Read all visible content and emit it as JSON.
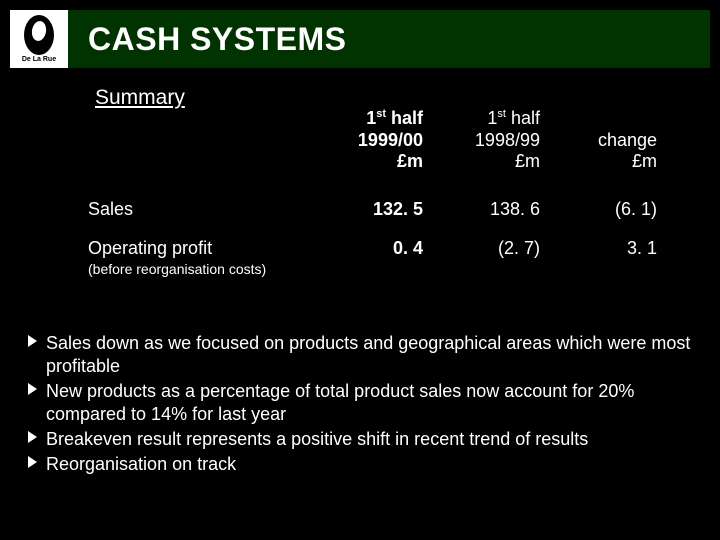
{
  "colors": {
    "background": "#000000",
    "titlebar": "#003300",
    "text": "#ffffff",
    "logo_bg": "#ffffff",
    "logo_fg": "#000000"
  },
  "typography": {
    "title_fontsize": 32,
    "subtitle_fontsize": 21,
    "table_fontsize": 18,
    "bullets_fontsize": 18,
    "subnote_fontsize": 14,
    "font_family": "Arial"
  },
  "logo": {
    "text": "De La Rue"
  },
  "title": "CASH SYSTEMS",
  "subtitle": "Summary",
  "table": {
    "columns": [
      {
        "line1": "1st half",
        "line2": "1999/00",
        "line3": "£m",
        "bold": true
      },
      {
        "line1": "1st half",
        "line2": "1998/99",
        "line3": "£m",
        "bold": false
      },
      {
        "line1": "",
        "line2": "change",
        "line3": "£m",
        "bold": false
      }
    ],
    "rows": [
      {
        "label": "Sales",
        "subnote": "",
        "c1": "132. 5",
        "c2": "138. 6",
        "c3": "(6. 1)"
      },
      {
        "label": "Operating profit",
        "subnote": "(before reorganisation costs)",
        "c1": "0. 4",
        "c2": "(2. 7)",
        "c3": "3. 1"
      }
    ]
  },
  "bullets": [
    "Sales down as we focused on products and geographical areas which were most profitable",
    "New products as a percentage of total product sales now account for 20% compared to 14% for last year",
    "Breakeven result represents a positive shift in recent trend of results",
    "Reorganisation on track"
  ]
}
